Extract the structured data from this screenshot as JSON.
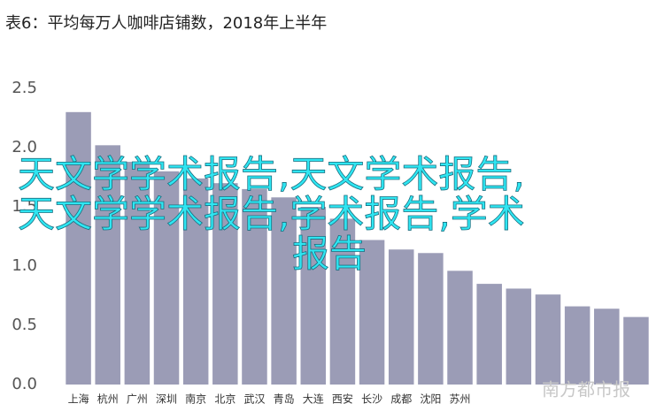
{
  "chart_data": {
    "type": "bar",
    "title": "表6：平均每万人咖啡店铺数，2018年上半年",
    "categories": [
      "上海",
      "杭州",
      "广州",
      "深圳",
      "南京",
      "北京",
      "武汉",
      "青岛",
      "大连",
      "西安",
      "长沙",
      "成都",
      "沈阳",
      "苏州",
      null,
      null,
      null,
      null,
      null,
      null
    ],
    "values": [
      2.3,
      2.02,
      1.88,
      1.8,
      1.74,
      1.7,
      1.65,
      1.58,
      1.5,
      1.4,
      1.22,
      1.14,
      1.11,
      0.96,
      0.85,
      0.81,
      0.76,
      0.66,
      0.64,
      0.57
    ],
    "color": "#9b9cb6",
    "ylim": [
      0,
      2.5
    ],
    "yticks": [
      {
        "value": 0,
        "label": "0.0"
      },
      0.5,
      {
        "value": 1,
        "label": "1.0"
      },
      1.5,
      {
        "value": 2,
        "label": "2.0"
      },
      2.5
    ],
    "grid": false,
    "annotations": [
      "天文学学术报告,天文学术报告,",
      "天文学学术报告,学术报告,学术",
      "报告"
    ],
    "logo": "南方都市报"
  }
}
